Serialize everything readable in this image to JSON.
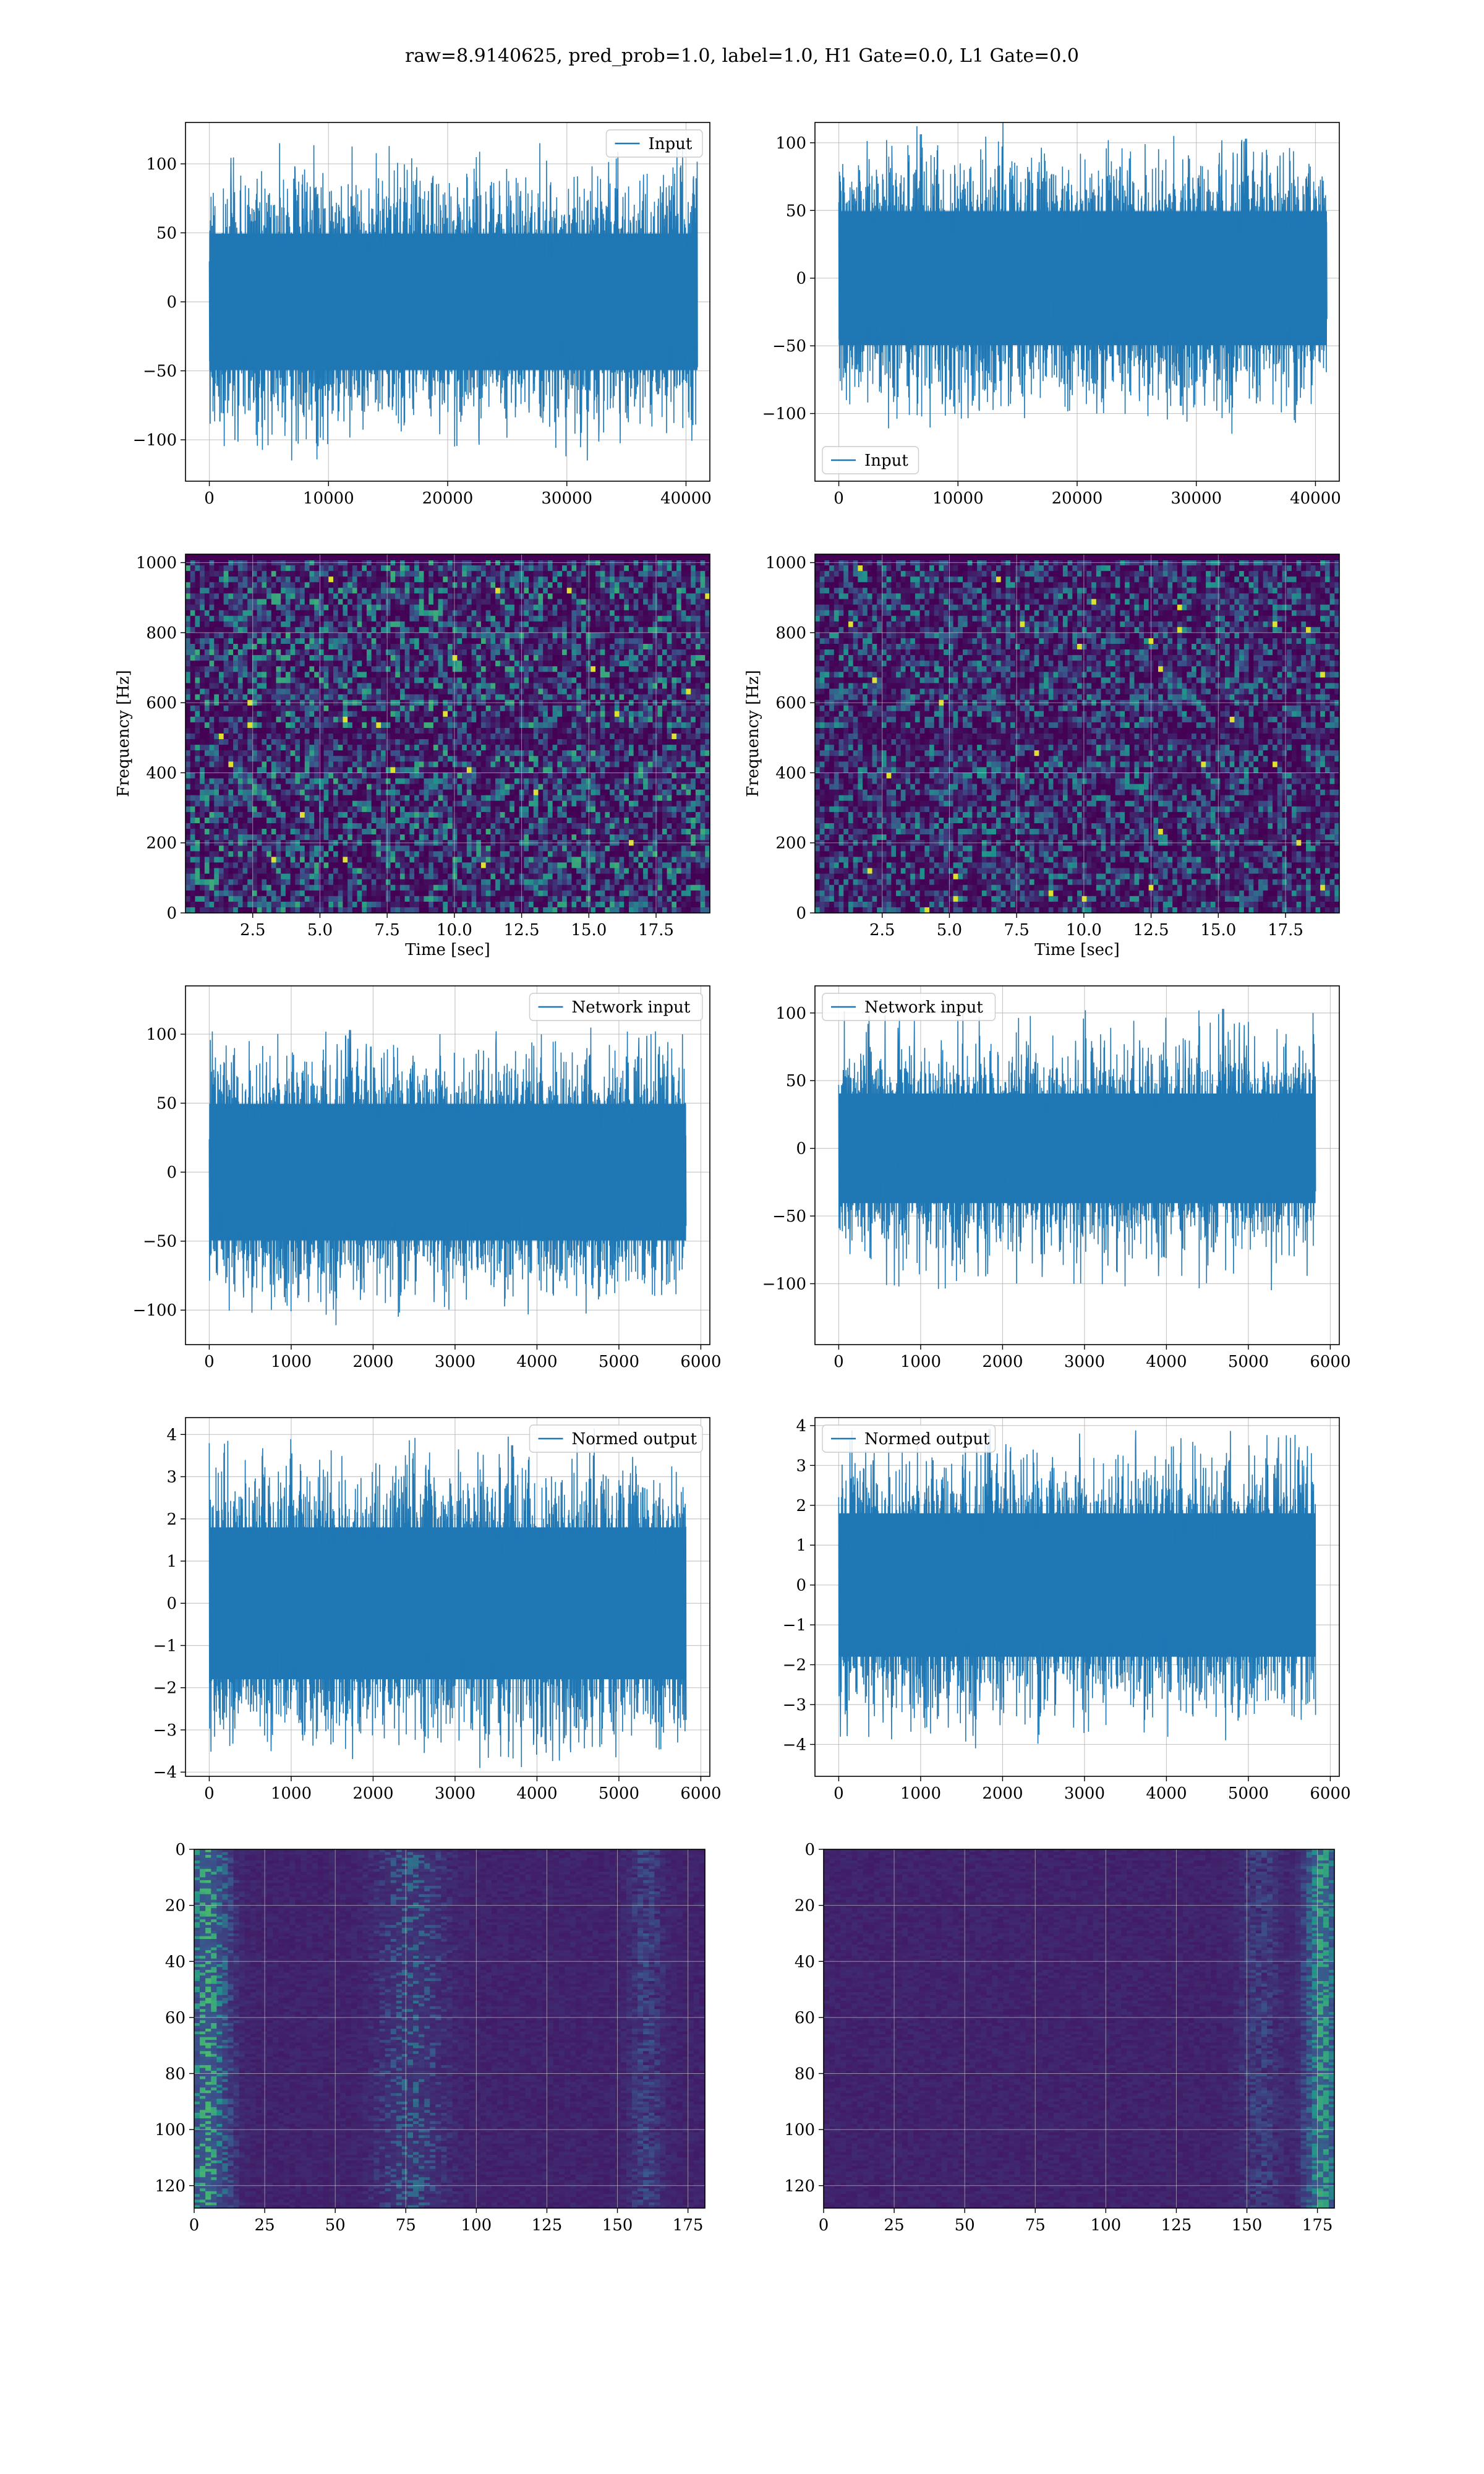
{
  "figure": {
    "suptitle": "raw=8.9140625, pred_prob=1.0, label=1.0, H1 Gate=0.0, L1 Gate=0.0"
  },
  "colors": {
    "line": "#1f77b4",
    "grid": "#b0b0b0",
    "viridis_dark": "#440154",
    "viridis_mid": "#21918c",
    "viridis_bright": "#fde725"
  },
  "chart_data": [
    {
      "id": "h1-input",
      "type": "line",
      "row": 0,
      "col": 0,
      "series": [
        {
          "name": "Input"
        }
      ],
      "legend": "top-right",
      "xlim": [
        -2000,
        42000
      ],
      "ylim": [
        -130,
        130
      ],
      "xticks": [
        0,
        10000,
        20000,
        30000,
        40000
      ],
      "yticks": [
        -100,
        -50,
        0,
        50,
        100
      ],
      "n_points": 40960,
      "envelope": 100,
      "core": 55,
      "noise": 22
    },
    {
      "id": "l1-input",
      "type": "line",
      "row": 0,
      "col": 1,
      "series": [
        {
          "name": "Input"
        }
      ],
      "legend": "bottom-left",
      "xlim": [
        -2000,
        42000
      ],
      "ylim": [
        -150,
        115
      ],
      "xticks": [
        0,
        10000,
        20000,
        30000,
        40000
      ],
      "yticks": [
        -100,
        -50,
        0,
        50,
        100
      ],
      "n_points": 40960,
      "envelope": 100,
      "core": 55,
      "noise": 22
    },
    {
      "id": "h1-spectrogram",
      "type": "heatmap",
      "row": 1,
      "col": 0,
      "xlabel": "Time [sec]",
      "ylabel": "Frequency [Hz]",
      "xlim": [
        0,
        19.5
      ],
      "ylim": [
        0,
        1024
      ],
      "xticks": [
        2.5,
        5.0,
        7.5,
        10.0,
        12.5,
        15.0,
        17.5
      ],
      "xticklabels": [
        "2.5",
        "5.0",
        "7.5",
        "10.0",
        "12.5",
        "15.0",
        "17.5"
      ],
      "yticks": [
        0,
        200,
        400,
        600,
        800,
        1000
      ]
    },
    {
      "id": "l1-spectrogram",
      "type": "heatmap",
      "row": 1,
      "col": 1,
      "xlabel": "Time [sec]",
      "ylabel": "Frequency [Hz]",
      "xlim": [
        0,
        19.5
      ],
      "ylim": [
        0,
        1024
      ],
      "xticks": [
        2.5,
        5.0,
        7.5,
        10.0,
        12.5,
        15.0,
        17.5
      ],
      "xticklabels": [
        "2.5",
        "5.0",
        "7.5",
        "10.0",
        "12.5",
        "15.0",
        "17.5"
      ],
      "yticks": [
        0,
        200,
        400,
        600,
        800,
        1000
      ]
    },
    {
      "id": "h1-network-input",
      "type": "line",
      "row": 2,
      "col": 0,
      "series": [
        {
          "name": "Network input"
        }
      ],
      "legend": "top-right",
      "xlim": [
        -290,
        6110
      ],
      "ylim": [
        -125,
        135
      ],
      "xticks": [
        0,
        1000,
        2000,
        3000,
        4000,
        5000,
        6000
      ],
      "yticks": [
        -100,
        -50,
        0,
        50,
        100
      ],
      "n_points": 5820,
      "envelope": 100,
      "core": 55,
      "noise": 20
    },
    {
      "id": "l1-network-input",
      "type": "line",
      "row": 2,
      "col": 1,
      "series": [
        {
          "name": "Network input"
        }
      ],
      "legend": "top-left",
      "xlim": [
        -290,
        6110
      ],
      "ylim": [
        -145,
        120
      ],
      "xticks": [
        0,
        1000,
        2000,
        3000,
        4000,
        5000,
        6000
      ],
      "yticks": [
        -100,
        -50,
        0,
        50,
        100
      ],
      "n_points": 5820,
      "envelope": 100,
      "core": 45,
      "noise": 18
    },
    {
      "id": "h1-normed-output",
      "type": "line",
      "row": 3,
      "col": 0,
      "series": [
        {
          "name": "Normed output"
        }
      ],
      "legend": "top-right",
      "xlim": [
        -290,
        6110
      ],
      "ylim": [
        -4.1,
        4.4
      ],
      "xticks": [
        0,
        1000,
        2000,
        3000,
        4000,
        5000,
        6000
      ],
      "yticks": [
        -4,
        -3,
        -2,
        -1,
        0,
        1,
        2,
        3,
        4
      ],
      "n_points": 5820,
      "envelope": 3.6,
      "core": 2.0,
      "noise": 0.75
    },
    {
      "id": "l1-normed-output",
      "type": "line",
      "row": 3,
      "col": 1,
      "series": [
        {
          "name": "Normed output"
        }
      ],
      "legend": "top-left",
      "xlim": [
        -290,
        6110
      ],
      "ylim": [
        -4.8,
        4.2
      ],
      "xticks": [
        0,
        1000,
        2000,
        3000,
        4000,
        5000,
        6000
      ],
      "yticks": [
        -4,
        -3,
        -2,
        -1,
        0,
        1,
        2,
        3,
        4
      ],
      "n_points": 5820,
      "envelope": 3.8,
      "core": 2.0,
      "noise": 0.75
    },
    {
      "id": "h1-feature-map",
      "type": "heatmap",
      "row": 4,
      "col": 0,
      "xlim": [
        0,
        181
      ],
      "ylim": [
        128,
        0
      ],
      "xticks": [
        0,
        25,
        50,
        75,
        100,
        125,
        150,
        175
      ],
      "yticks": [
        0,
        20,
        40,
        60,
        80,
        100,
        120
      ]
    },
    {
      "id": "l1-feature-map",
      "type": "heatmap",
      "row": 4,
      "col": 1,
      "xlim": [
        0,
        181
      ],
      "ylim": [
        128,
        0
      ],
      "xticks": [
        0,
        25,
        50,
        75,
        100,
        125,
        150,
        175
      ],
      "yticks": [
        0,
        20,
        40,
        60,
        80,
        100,
        120
      ]
    }
  ]
}
